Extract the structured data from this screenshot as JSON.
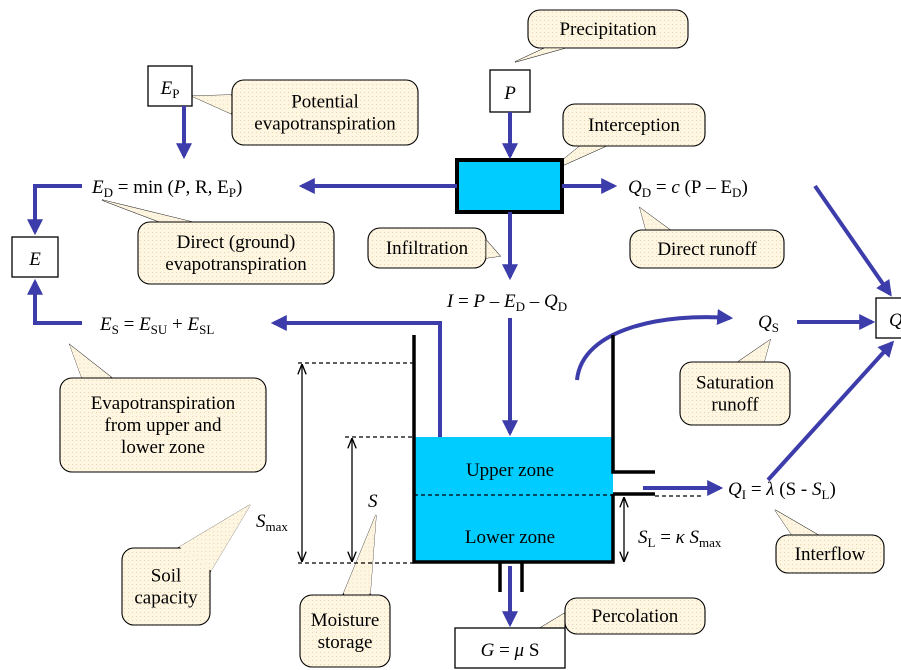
{
  "callouts": [
    [
      "Precipitation"
    ],
    [
      "Potential",
      "evapotranspiration"
    ],
    [
      "Interception"
    ],
    [
      "Direct (ground)",
      "evapotranspiration"
    ],
    [
      "Infiltration"
    ],
    [
      "Direct runoff"
    ],
    [
      "Evapotranspiration",
      "from upper and",
      "lower zone"
    ],
    [
      "Saturation",
      "runoff"
    ],
    [
      "Soil",
      "capacity"
    ],
    [
      "Moisture",
      "storage"
    ],
    [
      "Interflow"
    ],
    [
      "Percolation"
    ]
  ],
  "zones": [
    "Upper zone",
    "Lower zone"
  ],
  "formulas": [
    [
      "E",
      "D",
      " = min (",
      "P",
      ", ",
      "R",
      ", ",
      "E",
      "P",
      ")"
    ],
    [
      "Q",
      "D",
      " = ",
      "c",
      " (",
      "P",
      " – ",
      "E",
      "D",
      ")"
    ],
    [
      "I",
      " = ",
      "P",
      " – ",
      "E",
      "D",
      " – ",
      "Q",
      "D"
    ],
    [
      "E",
      "S",
      " = ",
      "E",
      "SU",
      " + ",
      "E",
      "SL"
    ],
    [
      "Q",
      "S"
    ],
    [
      "Q",
      "I",
      " = ",
      "λ",
      " (S - ",
      "S",
      "L",
      ")"
    ],
    [
      "S",
      "L",
      " = ",
      "κ",
      " ",
      "S",
      "max"
    ],
    [
      "S",
      "max"
    ],
    [
      "S"
    ],
    [
      "E",
      "P"
    ],
    [
      "P"
    ],
    [
      "E"
    ],
    [
      "Q"
    ],
    [
      "G",
      " = ",
      "μ",
      " ",
      "S"
    ]
  ]
}
